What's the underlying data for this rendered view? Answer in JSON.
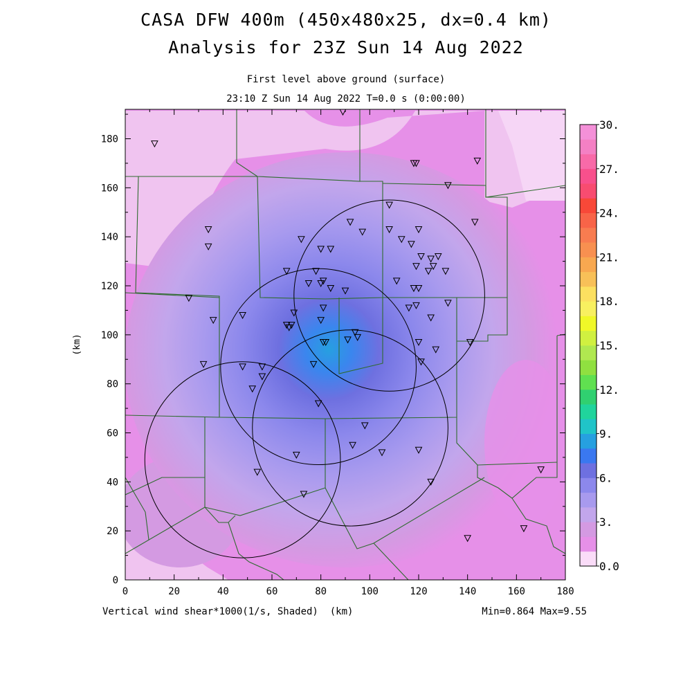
{
  "header": {
    "title_line1": "CASA DFW 400m (450x480x25, dx=0.4 km)",
    "title_line2": "Analysis for 23Z Sun 14 Aug 2022",
    "subtitle_line1": "First level above ground (surface)",
    "subtitle_line2": "23:10 Z Sun 14 Aug 2022    T=0.0 s (0:00:00)"
  },
  "axes": {
    "x_unit": "(km)",
    "y_unit": "(km)",
    "x_range": [
      0,
      180
    ],
    "y_range": [
      0,
      192
    ],
    "x_ticks": [
      0,
      20,
      40,
      60,
      80,
      100,
      120,
      140,
      160,
      180
    ],
    "y_ticks": [
      0,
      20,
      40,
      60,
      80,
      100,
      120,
      140,
      160,
      180
    ]
  },
  "footer": {
    "variable_label": "Vertical wind shear*1000(1/s, Shaded)",
    "stats": "Min=0.864 Max=9.55"
  },
  "colorbar": {
    "labels": [
      "30.",
      "27.",
      "24.",
      "21.",
      "18.",
      "15.",
      "12.",
      "9.",
      "6.",
      "3.",
      "0.0"
    ],
    "colors_bottom_to_top": [
      "#fadcf8",
      "#e690e8",
      "#d49ae2",
      "#c2a6ec",
      "#a89aee",
      "#8c88ec",
      "#6e70e0",
      "#3a78f0",
      "#26a0e0",
      "#20c4c8",
      "#20d49c",
      "#30d070",
      "#60e050",
      "#90e040",
      "#b0e850",
      "#d0f040",
      "#f0f828",
      "#f8f060",
      "#fce060",
      "#f8c058",
      "#f8a850",
      "#f89050",
      "#f87c50",
      "#f86448",
      "#f84838",
      "#f84c70",
      "#f8508c",
      "#f86aa8",
      "#f480c4",
      "#f490d8"
    ]
  },
  "map": {
    "radar_rings": [
      {
        "cx": 108,
        "cy": 116,
        "r": 39
      },
      {
        "cx": 79,
        "cy": 87,
        "r": 40
      },
      {
        "cx": 92,
        "cy": 62,
        "r": 40
      },
      {
        "cx": 48,
        "cy": 49,
        "r": 40
      }
    ],
    "stations": [
      [
        12,
        178
      ],
      [
        89,
        191
      ],
      [
        118,
        170
      ],
      [
        119,
        170
      ],
      [
        144,
        171
      ],
      [
        132,
        161
      ],
      [
        34,
        143
      ],
      [
        34,
        136
      ],
      [
        143,
        146
      ],
      [
        108,
        153
      ],
      [
        92,
        146
      ],
      [
        97,
        142
      ],
      [
        108,
        143
      ],
      [
        120,
        143
      ],
      [
        72,
        139
      ],
      [
        80,
        135
      ],
      [
        84,
        135
      ],
      [
        113,
        139
      ],
      [
        117,
        137
      ],
      [
        119,
        128
      ],
      [
        121,
        132
      ],
      [
        125,
        131
      ],
      [
        126,
        128
      ],
      [
        128,
        132
      ],
      [
        124,
        126
      ],
      [
        131,
        126
      ],
      [
        66,
        126
      ],
      [
        78,
        126
      ],
      [
        75,
        121
      ],
      [
        80,
        121
      ],
      [
        81,
        122
      ],
      [
        84,
        119
      ],
      [
        90,
        118
      ],
      [
        111,
        122
      ],
      [
        118,
        119
      ],
      [
        120,
        119
      ],
      [
        26,
        115
      ],
      [
        132,
        113
      ],
      [
        116,
        111
      ],
      [
        119,
        112
      ],
      [
        81,
        111
      ],
      [
        36,
        106
      ],
      [
        48,
        108
      ],
      [
        69,
        109
      ],
      [
        125,
        107
      ],
      [
        80,
        106
      ],
      [
        66,
        104
      ],
      [
        67,
        103
      ],
      [
        68,
        104
      ],
      [
        94,
        101
      ],
      [
        95,
        99
      ],
      [
        81,
        97
      ],
      [
        82,
        97
      ],
      [
        91,
        98
      ],
      [
        141,
        97
      ],
      [
        120,
        97
      ],
      [
        127,
        94
      ],
      [
        32,
        88
      ],
      [
        48,
        87
      ],
      [
        56,
        87
      ],
      [
        77,
        88
      ],
      [
        121,
        89
      ],
      [
        56,
        83
      ],
      [
        52,
        78
      ],
      [
        79,
        72
      ],
      [
        98,
        63
      ],
      [
        93,
        55
      ],
      [
        105,
        52
      ],
      [
        120,
        53
      ],
      [
        70,
        51
      ],
      [
        54,
        44
      ],
      [
        170,
        45
      ],
      [
        125,
        40
      ],
      [
        73,
        35
      ],
      [
        140,
        17
      ],
      [
        163,
        21
      ]
    ]
  }
}
